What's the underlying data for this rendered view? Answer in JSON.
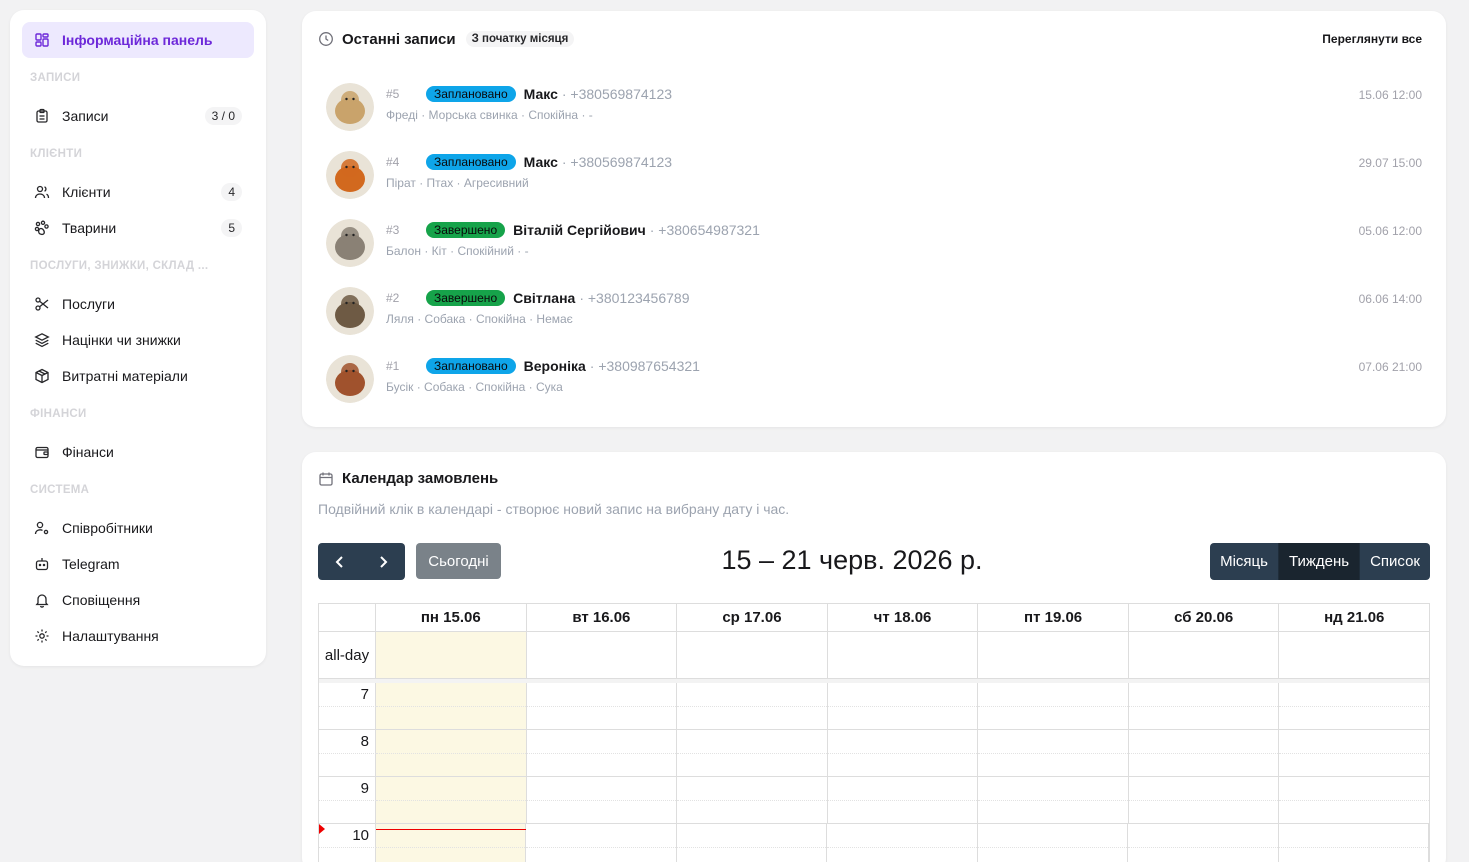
{
  "sidebar": {
    "dashboard_label": "Інформаційна панель",
    "sections": {
      "records": "Записи",
      "clients": "Клієнти",
      "services": "Послуги, знижки, склад ...",
      "finance": "Фінанси",
      "system": "Система"
    },
    "items": {
      "records": {
        "label": "Записи",
        "count": "3 / 0"
      },
      "clients": {
        "label": "Клієнти",
        "count": "4"
      },
      "pets": {
        "label": "Тварини",
        "count": "5"
      },
      "services": {
        "label": "Послуги"
      },
      "markups": {
        "label": "Націнки чи знижки"
      },
      "materials": {
        "label": "Витратні матеріали"
      },
      "finance": {
        "label": "Фінанси"
      },
      "employees": {
        "label": "Співробітники"
      },
      "telegram": {
        "label": "Telegram"
      },
      "notifications": {
        "label": "Сповіщення"
      },
      "settings": {
        "label": "Налаштування"
      }
    }
  },
  "recent": {
    "title": "Останні записи",
    "badge": "З початку місяця",
    "view_all": "Переглянути все",
    "rows": [
      {
        "num": "#5",
        "status": "Заплановано",
        "status_type": "planned",
        "name": "Макс",
        "phone": "· +380569874123",
        "details": "Фреді · Морська свинка · Спокійна · -",
        "date": "15.06 12:00",
        "avatar_color": "#c9a36b"
      },
      {
        "num": "#4",
        "status": "Заплановано",
        "status_type": "planned",
        "name": "Макс",
        "phone": "· +380569874123",
        "details": "Пірат · Птах · Агресивний",
        "date": "29.07 15:00",
        "avatar_color": "#d2691e"
      },
      {
        "num": "#3",
        "status": "Завершено",
        "status_type": "done",
        "name": "Віталій Сергійович",
        "phone": "· +380654987321",
        "details": "Балон · Кіт · Спокійний · -",
        "date": "05.06 12:00",
        "avatar_color": "#8a8175"
      },
      {
        "num": "#2",
        "status": "Завершено",
        "status_type": "done",
        "name": "Світлана",
        "phone": "· +380123456789",
        "details": "Ляля · Собака · Спокійна · Немає",
        "date": "06.06 14:00",
        "avatar_color": "#6e5a44"
      },
      {
        "num": "#1",
        "status": "Заплановано",
        "status_type": "planned",
        "name": "Вероніка",
        "phone": "· +380987654321",
        "details": "Бусік · Собака · Спокійна · Сука",
        "date": "07.06 21:00",
        "avatar_color": "#a0522d"
      }
    ]
  },
  "calendar": {
    "title": "Календар замовлень",
    "subtitle": "Подвійний клік в календарі - створює новий запис на вибрану дату і час.",
    "today_label": "Сьогодні",
    "range": "15 – 21 черв. 2026 р.",
    "views": [
      "Місяць",
      "Тиждень",
      "Список"
    ],
    "active_view": "Тиждень",
    "days": [
      "пн 15.06",
      "вт 16.06",
      "ср 17.06",
      "чт 18.06",
      "пт 19.06",
      "сб 20.06",
      "нд 21.06"
    ],
    "allday_label": "all-day",
    "hours": [
      "7",
      "8",
      "9",
      "10"
    ],
    "now_time": "10:00"
  }
}
